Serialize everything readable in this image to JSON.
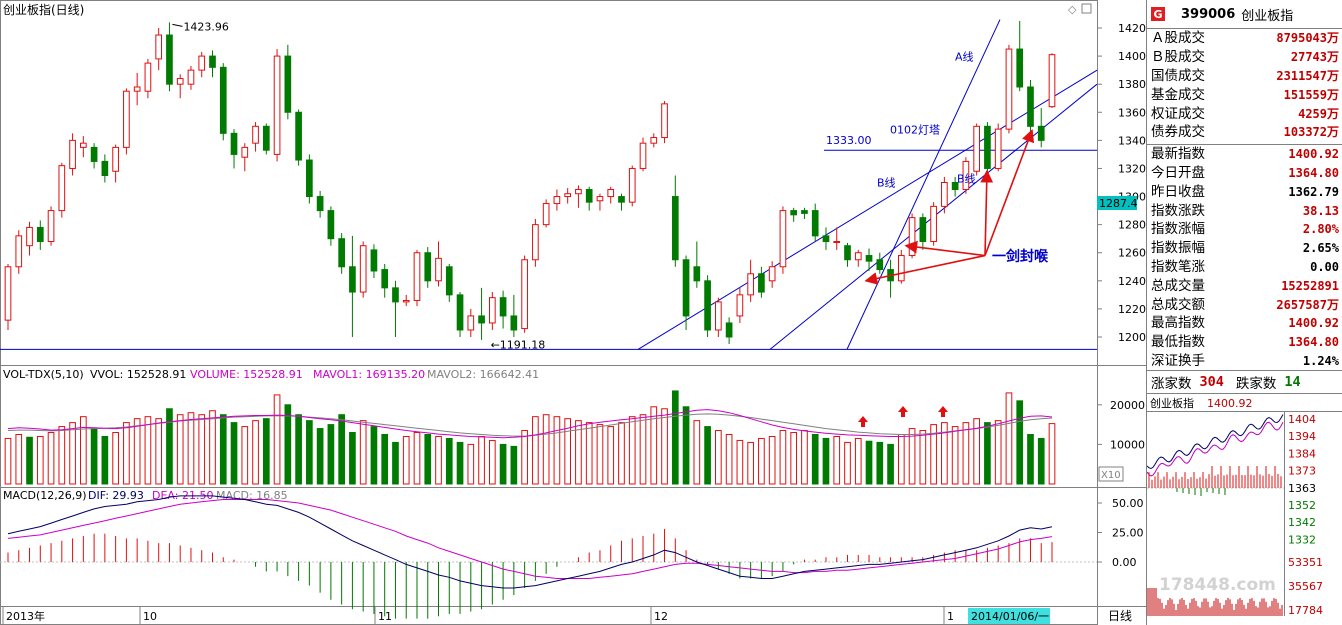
{
  "window": {
    "chart_title": "创业板指(日线)",
    "right_corner_icons": [
      "diamond-icon",
      "square-icon"
    ]
  },
  "colors": {
    "up": "#e01010",
    "down": "#007a00",
    "annot": "#0000cc",
    "arrow": "#e01010",
    "dif": "#000066",
    "dea": "#cc00cc",
    "mavol1": "#cc00cc",
    "mavol2": "#808080"
  },
  "price_panel": {
    "axis_ticks": [
      "1420",
      "1400",
      "1380",
      "1360",
      "1340",
      "1320",
      "1300",
      "1280",
      "1260",
      "1240",
      "1220",
      "1200"
    ],
    "current_price_tag": "1287.4",
    "high_label": "1423.96",
    "low_label": "1191.18",
    "annotations": {
      "line_a": "A线",
      "line_b1": "B线",
      "line_b2": "B线",
      "level_1333": "1333.00",
      "lighthouse": "0102灯塔",
      "sword": "一剑封喉"
    }
  },
  "volume_panel": {
    "label": "VOL-TDX(5,10)",
    "vvol": "VVOL: 152528.91",
    "volume": "VOLUME: 152528.91",
    "mavol1": "MAVOL1: 169135.20",
    "mavol2": "MAVOL2: 166642.41",
    "axis_ticks": [
      "20000",
      "10000"
    ],
    "unit": "X10"
  },
  "macd_panel": {
    "label": "MACD(12,26,9)",
    "dif": "DIF: 29.93",
    "dea": "DEA: 21.50",
    "macd": "MACD: 16.85",
    "axis_ticks": [
      "50.00",
      "25.00",
      "0.00"
    ]
  },
  "time_axis": {
    "labels": [
      "2013年",
      "10",
      "11",
      "12",
      "1"
    ],
    "cursor_date": "2014/01/06/一",
    "period": "日线"
  },
  "sidebar": {
    "code": "399006",
    "name": "创业板指",
    "rows_turnover": [
      {
        "label": "Ａ股成交",
        "value": "8795043",
        "unit": "万"
      },
      {
        "label": "Ｂ股成交",
        "value": "27743",
        "unit": "万"
      },
      {
        "label": "国债成交",
        "value": "2311547",
        "unit": "万"
      },
      {
        "label": "基金成交",
        "value": "151559",
        "unit": "万"
      },
      {
        "label": "权证成交",
        "value": "4259",
        "unit": "万"
      },
      {
        "label": "债券成交",
        "value": "103372",
        "unit": "万"
      }
    ],
    "rows_index": [
      {
        "label": "最新指数",
        "value": "1400.92",
        "color": "red"
      },
      {
        "label": "今日开盘",
        "value": "1364.80",
        "color": "red"
      },
      {
        "label": "昨日收盘",
        "value": "1362.79",
        "color": "black"
      },
      {
        "label": "指数涨跌",
        "value": "38.13",
        "color": "red"
      },
      {
        "label": "指数涨幅",
        "value": "2.80%",
        "color": "red"
      },
      {
        "label": "指数振幅",
        "value": "2.65%",
        "color": "black"
      },
      {
        "label": "指数笔涨",
        "value": "0.00",
        "color": "black"
      },
      {
        "label": "总成交量",
        "value": "15252891",
        "color": "red"
      },
      {
        "label": "总成交额",
        "value": "2657587万",
        "color": "red"
      },
      {
        "label": "最高指数",
        "value": "1400.92",
        "color": "red"
      },
      {
        "label": "最低指数",
        "value": "1364.80",
        "color": "red"
      },
      {
        "label": "深证换手",
        "value": "1.24%",
        "color": "black"
      }
    ],
    "up_label": "涨家数",
    "up_count": "304",
    "down_label": "跌家数",
    "down_count": "14",
    "mini_title": "创业板指",
    "mini_price": "1400.92",
    "mini_ticks": [
      "1404",
      "1394",
      "1384",
      "1373",
      "1363",
      "1352",
      "1342",
      "1332"
    ],
    "mini_vol_ticks": [
      "53351",
      "35567",
      "17784"
    ],
    "watermark": "178448.com"
  },
  "chart_data": {
    "type": "candlestick",
    "title": "创业板指(日线)",
    "ylim": [
      1185,
      1432
    ],
    "candles": [
      [
        1212,
        1250,
        1205,
        1252
      ],
      [
        1250,
        1272,
        1245,
        1276
      ],
      [
        1265,
        1278,
        1258,
        1282
      ],
      [
        1278,
        1268,
        1262,
        1283
      ],
      [
        1268,
        1290,
        1265,
        1293
      ],
      [
        1290,
        1322,
        1285,
        1324
      ],
      [
        1320,
        1340,
        1315,
        1345
      ],
      [
        1335,
        1338,
        1328,
        1343
      ],
      [
        1335,
        1325,
        1320,
        1338
      ],
      [
        1325,
        1315,
        1310,
        1330
      ],
      [
        1318,
        1335,
        1310,
        1337
      ],
      [
        1335,
        1375,
        1330,
        1377
      ],
      [
        1375,
        1378,
        1365,
        1388
      ],
      [
        1375,
        1395,
        1370,
        1398
      ],
      [
        1398,
        1415,
        1390,
        1420
      ],
      [
        1415,
        1380,
        1375,
        1424
      ],
      [
        1380,
        1384,
        1370,
        1387
      ],
      [
        1380,
        1390,
        1376,
        1393
      ],
      [
        1390,
        1400,
        1385,
        1403
      ],
      [
        1400,
        1392,
        1385,
        1404
      ],
      [
        1392,
        1345,
        1340,
        1395
      ],
      [
        1345,
        1330,
        1320,
        1348
      ],
      [
        1328,
        1335,
        1318,
        1338
      ],
      [
        1338,
        1350,
        1332,
        1353
      ],
      [
        1350,
        1333,
        1330,
        1352
      ],
      [
        1330,
        1400,
        1325,
        1405
      ],
      [
        1400,
        1360,
        1355,
        1408
      ],
      [
        1360,
        1326,
        1322,
        1362
      ],
      [
        1326,
        1300,
        1295,
        1330
      ],
      [
        1300,
        1290,
        1285,
        1304
      ],
      [
        1290,
        1270,
        1265,
        1293
      ],
      [
        1270,
        1250,
        1245,
        1274
      ],
      [
        1250,
        1232,
        1200,
        1272
      ],
      [
        1232,
        1265,
        1228,
        1268
      ],
      [
        1262,
        1247,
        1242,
        1266
      ],
      [
        1248,
        1235,
        1228,
        1252
      ],
      [
        1235,
        1225,
        1200,
        1240
      ],
      [
        1225,
        1226,
        1222,
        1230
      ],
      [
        1226,
        1260,
        1222,
        1262
      ],
      [
        1260,
        1240,
        1235,
        1264
      ],
      [
        1240,
        1256,
        1236,
        1268
      ],
      [
        1250,
        1230,
        1225,
        1252
      ],
      [
        1230,
        1205,
        1200,
        1232
      ],
      [
        1205,
        1215,
        1200,
        1220
      ],
      [
        1215,
        1210,
        1198,
        1235
      ],
      [
        1210,
        1228,
        1205,
        1232
      ],
      [
        1228,
        1215,
        1206,
        1233
      ],
      [
        1215,
        1205,
        1200,
        1230
      ],
      [
        1206,
        1255,
        1203,
        1258
      ],
      [
        1255,
        1280,
        1250,
        1284
      ],
      [
        1280,
        1295,
        1278,
        1298
      ],
      [
        1295,
        1300,
        1290,
        1305
      ],
      [
        1300,
        1302,
        1295,
        1306
      ],
      [
        1302,
        1305,
        1292,
        1308
      ],
      [
        1305,
        1296,
        1290,
        1307
      ],
      [
        1297,
        1300,
        1290,
        1302
      ],
      [
        1300,
        1305,
        1295,
        1307
      ],
      [
        1300,
        1296,
        1290,
        1302
      ],
      [
        1296,
        1320,
        1293,
        1322
      ],
      [
        1320,
        1338,
        1318,
        1342
      ],
      [
        1338,
        1342,
        1335,
        1345
      ],
      [
        1342,
        1366,
        1338,
        1368
      ],
      [
        1300,
        1255,
        1250,
        1315
      ],
      [
        1255,
        1215,
        1205,
        1258
      ],
      [
        1250,
        1240,
        1235,
        1268
      ],
      [
        1240,
        1205,
        1200,
        1244
      ],
      [
        1205,
        1225,
        1200,
        1228
      ],
      [
        1210,
        1200,
        1195,
        1214
      ],
      [
        1215,
        1230,
        1210,
        1235
      ],
      [
        1230,
        1245,
        1225,
        1255
      ],
      [
        1245,
        1232,
        1228,
        1250
      ],
      [
        1240,
        1250,
        1235,
        1254
      ],
      [
        1250,
        1290,
        1245,
        1293
      ],
      [
        1290,
        1287,
        1282,
        1292
      ],
      [
        1290,
        1288,
        1284,
        1292
      ],
      [
        1290,
        1272,
        1268,
        1295
      ],
      [
        1272,
        1268,
        1262,
        1278
      ],
      [
        1268,
        1268,
        1262,
        1278
      ],
      [
        1265,
        1255,
        1250,
        1267
      ],
      [
        1255,
        1260,
        1250,
        1262
      ],
      [
        1258,
        1254,
        1247,
        1263
      ],
      [
        1255,
        1248,
        1245,
        1260
      ],
      [
        1248,
        1240,
        1228,
        1255
      ],
      [
        1240,
        1258,
        1238,
        1262
      ],
      [
        1258,
        1285,
        1256,
        1288
      ],
      [
        1285,
        1268,
        1262,
        1288
      ],
      [
        1268,
        1293,
        1265,
        1296
      ],
      [
        1293,
        1310,
        1288,
        1314
      ],
      [
        1310,
        1305,
        1300,
        1314
      ],
      [
        1305,
        1325,
        1302,
        1328
      ],
      [
        1318,
        1350,
        1315,
        1352
      ],
      [
        1350,
        1320,
        1312,
        1353
      ],
      [
        1320,
        1348,
        1318,
        1352
      ],
      [
        1348,
        1405,
        1345,
        1408
      ],
      [
        1405,
        1378,
        1375,
        1425
      ],
      [
        1378,
        1350,
        1345,
        1383
      ],
      [
        1350,
        1340,
        1335,
        1363
      ],
      [
        1364,
        1401,
        1363,
        1402
      ]
    ],
    "volumes": [
      [
        11500,
        1
      ],
      [
        12500,
        1
      ],
      [
        11800,
        0
      ],
      [
        12000,
        1
      ],
      [
        13000,
        1
      ],
      [
        14500,
        1
      ],
      [
        15500,
        1
      ],
      [
        17000,
        1
      ],
      [
        14000,
        0
      ],
      [
        12000,
        0
      ],
      [
        13000,
        1
      ],
      [
        15500,
        1
      ],
      [
        16500,
        1
      ],
      [
        17000,
        1
      ],
      [
        16500,
        1
      ],
      [
        19000,
        0
      ],
      [
        17500,
        1
      ],
      [
        18000,
        1
      ],
      [
        17500,
        1
      ],
      [
        18500,
        1
      ],
      [
        17500,
        0
      ],
      [
        15500,
        0
      ],
      [
        14500,
        1
      ],
      [
        16000,
        1
      ],
      [
        16500,
        0
      ],
      [
        22500,
        1
      ],
      [
        20000,
        0
      ],
      [
        17500,
        0
      ],
      [
        16000,
        0
      ],
      [
        14000,
        0
      ],
      [
        15000,
        0
      ],
      [
        17500,
        0
      ],
      [
        13000,
        0
      ],
      [
        16000,
        1
      ],
      [
        14500,
        0
      ],
      [
        12500,
        0
      ],
      [
        10500,
        0
      ],
      [
        12000,
        1
      ],
      [
        13000,
        1
      ],
      [
        12500,
        0
      ],
      [
        12000,
        1
      ],
      [
        11500,
        0
      ],
      [
        10500,
        0
      ],
      [
        10000,
        1
      ],
      [
        12000,
        1
      ],
      [
        11000,
        1
      ],
      [
        10000,
        0
      ],
      [
        9500,
        0
      ],
      [
        13500,
        1
      ],
      [
        17000,
        1
      ],
      [
        17500,
        1
      ],
      [
        17000,
        1
      ],
      [
        16500,
        1
      ],
      [
        16000,
        1
      ],
      [
        15500,
        1
      ],
      [
        15000,
        1
      ],
      [
        14500,
        1
      ],
      [
        15500,
        1
      ],
      [
        17000,
        1
      ],
      [
        17500,
        1
      ],
      [
        19500,
        1
      ],
      [
        19000,
        1
      ],
      [
        23500,
        0
      ],
      [
        19500,
        0
      ],
      [
        16000,
        1
      ],
      [
        14500,
        0
      ],
      [
        13500,
        1
      ],
      [
        12500,
        1
      ],
      [
        11000,
        1
      ],
      [
        10500,
        1
      ],
      [
        11500,
        1
      ],
      [
        12000,
        1
      ],
      [
        13500,
        1
      ],
      [
        13000,
        1
      ],
      [
        13500,
        1
      ],
      [
        12500,
        0
      ],
      [
        11500,
        0
      ],
      [
        12000,
        1
      ],
      [
        10500,
        1
      ],
      [
        11500,
        1
      ],
      [
        10800,
        0
      ],
      [
        10500,
        0
      ],
      [
        10000,
        0
      ],
      [
        12500,
        1
      ],
      [
        14000,
        1
      ],
      [
        13500,
        1
      ],
      [
        15000,
        1
      ],
      [
        15500,
        1
      ],
      [
        14500,
        1
      ],
      [
        15500,
        1
      ],
      [
        16500,
        1
      ],
      [
        15500,
        0
      ],
      [
        16000,
        1
      ],
      [
        23000,
        1
      ],
      [
        21000,
        0
      ],
      [
        12500,
        0
      ],
      [
        11500,
        0
      ],
      [
        15250,
        1
      ]
    ],
    "mavol1": [
      14000,
      14200,
      14100,
      13900,
      13600,
      13700,
      14000,
      14300,
      14200,
      14100,
      14000,
      14200,
      14600,
      15000,
      15400,
      15700,
      16000,
      16300,
      16500,
      16700,
      16900,
      17100,
      17200,
      17300,
      17300,
      17400,
      17300,
      17100,
      16800,
      16500,
      16200,
      15900,
      15500,
      15100,
      14700,
      14300,
      13900,
      13500,
      13200,
      12900,
      12600,
      12400,
      12200,
      12000,
      11900,
      11800,
      11700,
      11800,
      12000,
      12400,
      12900,
      13500,
      14100,
      14700,
      15200,
      15600,
      15900,
      16200,
      16500,
      16800,
      17100,
      17400,
      17800,
      18200,
      18600,
      18800,
      18500,
      18000,
      17300,
      16500,
      15700,
      14900,
      14300,
      13800,
      13400,
      13100,
      12800,
      12600,
      12400,
      12300,
      12200,
      12100,
      12000,
      12000,
      12100,
      12300,
      12600,
      12900,
      13300,
      13700,
      14100,
      14600,
      15200,
      15900,
      16600,
      17100,
      17200,
      16914
    ],
    "mavol2": [
      13500,
      13600,
      13600,
      13500,
      13400,
      13500,
      13700,
      13900,
      14000,
      14100,
      14200,
      14400,
      14700,
      15000,
      15300,
      15600,
      15900,
      16100,
      16300,
      16500,
      16700,
      16900,
      17000,
      17100,
      17200,
      17200,
      17200,
      17100,
      16900,
      16700,
      16500,
      16200,
      15900,
      15600,
      15300,
      15000,
      14700,
      14400,
      14100,
      13800,
      13500,
      13200,
      12900,
      12700,
      12500,
      12300,
      12200,
      12100,
      12100,
      12300,
      12600,
      12900,
      13300,
      13700,
      14100,
      14500,
      14900,
      15300,
      15700,
      16100,
      16500,
      16800,
      17100,
      17400,
      17600,
      17700,
      17600,
      17400,
      17100,
      16800,
      16400,
      16000,
      15600,
      15200,
      14800,
      14400,
      14000,
      13700,
      13400,
      13100,
      12900,
      12700,
      12600,
      12500,
      12500,
      12600,
      12800,
      13100,
      13400,
      13700,
      14000,
      14400,
      14800,
      15300,
      15800,
      16200,
      16500,
      16664
    ],
    "dif": [
      24,
      26,
      28,
      30,
      33,
      36,
      39,
      42,
      45,
      47,
      48,
      49,
      51,
      52,
      53,
      55,
      56,
      56,
      56,
      56,
      55,
      54,
      53,
      51,
      49,
      48,
      45,
      42,
      38,
      33,
      28,
      23,
      18,
      14,
      10,
      6,
      2,
      -2,
      -5,
      -8,
      -11,
      -13,
      -16,
      -18,
      -20,
      -21,
      -22,
      -22,
      -21,
      -20,
      -18,
      -16,
      -14,
      -12,
      -10,
      -8,
      -5,
      -2,
      0,
      3,
      6,
      10,
      8,
      4,
      0,
      -3,
      -6,
      -9,
      -12,
      -13,
      -14,
      -14,
      -12,
      -10,
      -8,
      -7,
      -6,
      -5,
      -4,
      -3,
      -2,
      -2,
      -1,
      0,
      1,
      2,
      4,
      6,
      8,
      10,
      12,
      15,
      18,
      22,
      27,
      29,
      28,
      29.93
    ],
    "dea": [
      20,
      21,
      22,
      23,
      25,
      27,
      29,
      31,
      33,
      35,
      37,
      39,
      41,
      43,
      45,
      47,
      49,
      50,
      51,
      52,
      53,
      53,
      53,
      53,
      53,
      52,
      51,
      50,
      48,
      46,
      44,
      41,
      38,
      35,
      32,
      29,
      26,
      22,
      19,
      16,
      12,
      9,
      6,
      3,
      0,
      -3,
      -6,
      -8,
      -10,
      -12,
      -13,
      -14,
      -14,
      -14,
      -14,
      -13,
      -12,
      -11,
      -10,
      -8,
      -6,
      -4,
      -2,
      -1,
      -1,
      -2,
      -3,
      -4,
      -5,
      -6,
      -7,
      -8,
      -8,
      -9,
      -9,
      -8,
      -8,
      -7,
      -7,
      -6,
      -5,
      -4,
      -3,
      -2,
      -1,
      0,
      1,
      2,
      3,
      5,
      7,
      9,
      11,
      14,
      17,
      19,
      20,
      21.5
    ]
  }
}
